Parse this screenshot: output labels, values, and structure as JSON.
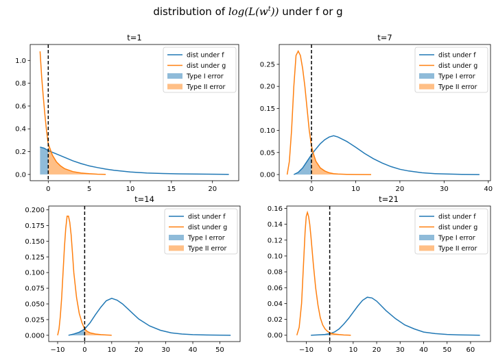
{
  "suptitle": {
    "prefix": "distribution of ",
    "math_log": "log",
    "math_open": "(L(w",
    "math_sup": "t",
    "math_close": "))",
    "suffix": " under f or g"
  },
  "colors": {
    "f": "#1f77b4",
    "g": "#ff7f0e",
    "type1_fill": "#8fbbd9",
    "type2_fill": "#ffbf86",
    "threshold": "#000000"
  },
  "chart_data": [
    {
      "type": "line",
      "title": "t=1",
      "xlim": [
        -2.2,
        23.2
      ],
      "ylim": [
        -0.055,
        1.14
      ],
      "xticks": [
        0,
        5,
        10,
        15,
        20
      ],
      "yticks": [
        0.0,
        0.2,
        0.4,
        0.6,
        0.8,
        1.0
      ],
      "ytick_labels": [
        "0.0",
        "0.2",
        "0.4",
        "0.6",
        "0.8",
        "1.0"
      ],
      "threshold_x": 0,
      "legend": [
        "dist under f",
        "dist under g",
        "Type I error",
        "Type II error"
      ],
      "legend_position": "upper right",
      "series": [
        {
          "name": "dist under f",
          "x": [
            -1.0,
            -0.5,
            0.0,
            1,
            2,
            3,
            4,
            5,
            6,
            7,
            8,
            10,
            12,
            14,
            16,
            18,
            20,
            22
          ],
          "y": [
            0.24,
            0.23,
            0.21,
            0.18,
            0.15,
            0.12,
            0.095,
            0.075,
            0.06,
            0.047,
            0.036,
            0.022,
            0.013,
            0.008,
            0.005,
            0.003,
            0.002,
            0.001
          ]
        },
        {
          "name": "dist under g",
          "x": [
            -1.0,
            -0.8,
            -0.6,
            -0.4,
            -0.2,
            0.0,
            0.5,
            1,
            1.5,
            2,
            3,
            4,
            5,
            6,
            7
          ],
          "y": [
            1.08,
            0.85,
            0.68,
            0.52,
            0.38,
            0.27,
            0.17,
            0.11,
            0.075,
            0.05,
            0.025,
            0.012,
            0.006,
            0.002,
            0.001
          ]
        }
      ]
    },
    {
      "type": "line",
      "title": "t=7",
      "xlim": [
        -7.3,
        40.5
      ],
      "ylim": [
        -0.014,
        0.295
      ],
      "xticks": [
        0,
        10,
        20,
        30,
        40
      ],
      "yticks": [
        0.0,
        0.05,
        0.1,
        0.15,
        0.2,
        0.25
      ],
      "ytick_labels": [
        "0.00",
        "0.05",
        "0.10",
        "0.15",
        "0.20",
        "0.25"
      ],
      "threshold_x": 0,
      "legend": [
        "dist under f",
        "dist under g",
        "Type I error",
        "Type II error"
      ],
      "legend_position": "upper right",
      "series": [
        {
          "name": "dist under f",
          "x": [
            -4,
            -3,
            -2,
            -1,
            0,
            1,
            2,
            3,
            4,
            5,
            6,
            8,
            10,
            12,
            14,
            16,
            18,
            20,
            22,
            25,
            28,
            31,
            34,
            38
          ],
          "y": [
            0.0,
            0.005,
            0.015,
            0.03,
            0.045,
            0.058,
            0.07,
            0.079,
            0.085,
            0.088,
            0.085,
            0.075,
            0.062,
            0.048,
            0.036,
            0.026,
            0.018,
            0.012,
            0.008,
            0.004,
            0.002,
            0.001,
            0.0005,
            0.0
          ]
        },
        {
          "name": "dist under g",
          "x": [
            -5.5,
            -5,
            -4.5,
            -4,
            -3.5,
            -3,
            -2.5,
            -2,
            -1.5,
            -1,
            -0.5,
            0,
            0.5,
            1,
            2,
            3,
            4,
            5,
            6,
            8,
            10,
            13.5
          ],
          "y": [
            0.0,
            0.03,
            0.1,
            0.2,
            0.27,
            0.28,
            0.27,
            0.24,
            0.2,
            0.15,
            0.1,
            0.065,
            0.045,
            0.03,
            0.015,
            0.008,
            0.004,
            0.002,
            0.001,
            0.0005,
            0.0002,
            0.0
          ]
        }
      ]
    },
    {
      "type": "line",
      "title": "t=14",
      "xlim": [
        -13.3,
        57.5
      ],
      "ylim": [
        -0.01,
        0.206
      ],
      "xticks": [
        -10,
        0,
        10,
        20,
        30,
        40,
        50
      ],
      "yticks": [
        0.0,
        0.025,
        0.05,
        0.075,
        0.1,
        0.125,
        0.15,
        0.175,
        0.2
      ],
      "ytick_labels": [
        "0.000",
        "0.025",
        "0.050",
        "0.075",
        "0.100",
        "0.125",
        "0.150",
        "0.175",
        "0.200"
      ],
      "threshold_x": 0,
      "legend": [
        "dist under f",
        "dist under g",
        "Type I error",
        "Type II error"
      ],
      "legend_position": "upper right",
      "series": [
        {
          "name": "dist under f",
          "x": [
            -6,
            -4,
            -2,
            0,
            2,
            4,
            6,
            8,
            10,
            12,
            14,
            16,
            18,
            20,
            24,
            28,
            32,
            36,
            40,
            45,
            50,
            54
          ],
          "y": [
            0.0,
            0.002,
            0.005,
            0.01,
            0.02,
            0.033,
            0.045,
            0.055,
            0.059,
            0.056,
            0.05,
            0.042,
            0.034,
            0.026,
            0.015,
            0.008,
            0.004,
            0.002,
            0.001,
            0.0005,
            0.0002,
            0.0
          ]
        },
        {
          "name": "dist under g",
          "x": [
            -10,
            -9.5,
            -9,
            -8.5,
            -8,
            -7.5,
            -7,
            -6.5,
            -6,
            -5.5,
            -5,
            -4.5,
            -4,
            -3,
            -2,
            -1,
            0,
            1,
            2,
            4,
            6,
            8,
            10
          ],
          "y": [
            0.0,
            0.01,
            0.03,
            0.06,
            0.1,
            0.14,
            0.17,
            0.19,
            0.19,
            0.18,
            0.16,
            0.13,
            0.1,
            0.06,
            0.035,
            0.02,
            0.01,
            0.006,
            0.004,
            0.002,
            0.001,
            0.0005,
            0.0
          ]
        }
      ]
    },
    {
      "type": "line",
      "title": "t=21",
      "xlim": [
        -18.3,
        68.5
      ],
      "ylim": [
        -0.008,
        0.163
      ],
      "xticks": [
        -10,
        0,
        10,
        20,
        30,
        40,
        50,
        60
      ],
      "yticks": [
        0.0,
        0.02,
        0.04,
        0.06,
        0.08,
        0.1,
        0.12,
        0.14,
        0.16
      ],
      "ytick_labels": [
        "0.00",
        "0.02",
        "0.04",
        "0.06",
        "0.08",
        "0.10",
        "0.12",
        "0.14",
        "0.16"
      ],
      "threshold_x": 0,
      "legend": [
        "dist under f",
        "dist under g",
        "Type I error",
        "Type II error"
      ],
      "legend_position": "upper right",
      "series": [
        {
          "name": "dist under f",
          "x": [
            -8,
            -5,
            -2,
            0,
            2,
            4,
            6,
            8,
            10,
            12,
            14,
            16,
            18,
            20,
            22,
            24,
            28,
            32,
            36,
            40,
            45,
            50,
            55,
            60,
            64
          ],
          "y": [
            0.0,
            0.0005,
            0.001,
            0.002,
            0.004,
            0.008,
            0.014,
            0.021,
            0.029,
            0.037,
            0.044,
            0.048,
            0.047,
            0.043,
            0.037,
            0.031,
            0.021,
            0.013,
            0.008,
            0.004,
            0.002,
            0.001,
            0.0005,
            0.0002,
            0.0
          ]
        },
        {
          "name": "dist under g",
          "x": [
            -14,
            -13,
            -12,
            -11.5,
            -11,
            -10.5,
            -10,
            -9.5,
            -9,
            -8.5,
            -8,
            -7,
            -6,
            -5,
            -4,
            -3,
            -2,
            -1,
            0,
            2,
            4,
            6,
            9
          ],
          "y": [
            0.0,
            0.01,
            0.04,
            0.07,
            0.1,
            0.13,
            0.15,
            0.155,
            0.15,
            0.14,
            0.125,
            0.09,
            0.06,
            0.038,
            0.022,
            0.013,
            0.008,
            0.005,
            0.003,
            0.0015,
            0.0008,
            0.0003,
            0.0
          ]
        }
      ]
    }
  ]
}
